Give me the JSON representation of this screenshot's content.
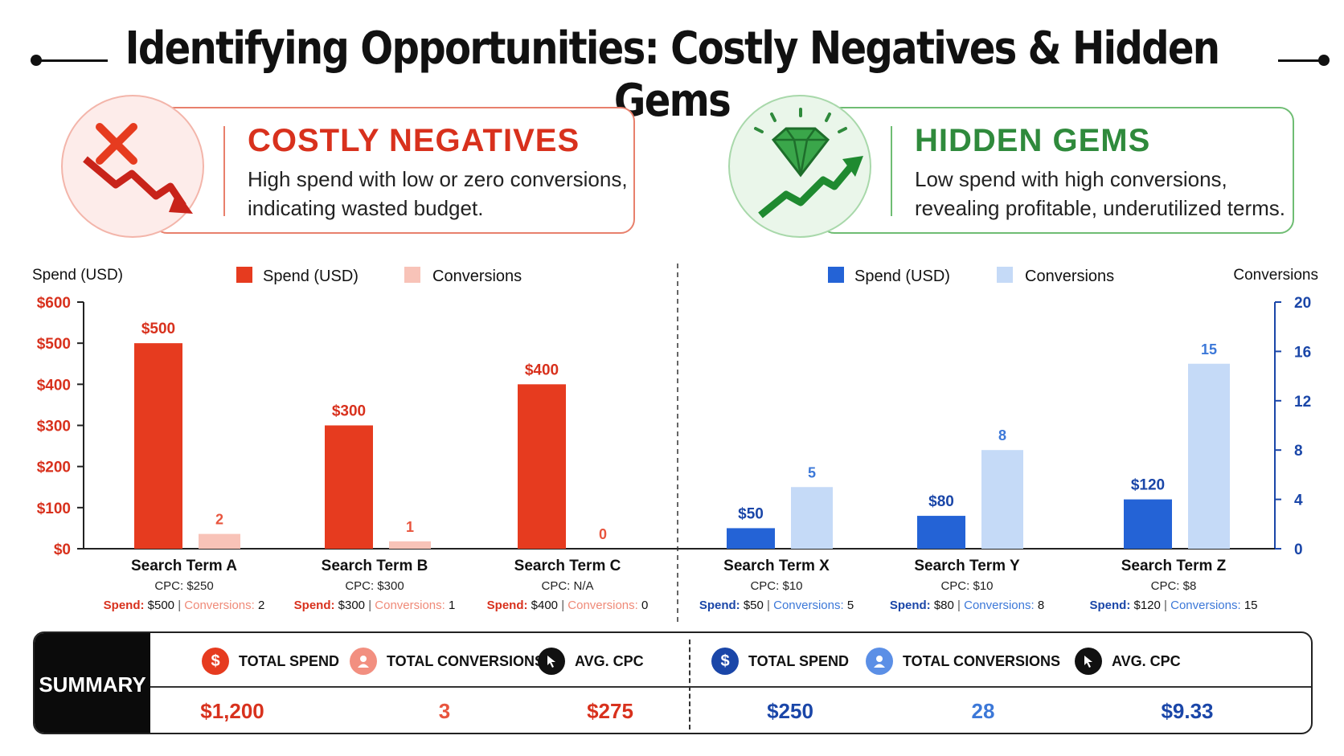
{
  "title": "Identifying Opportunities: Costly Negatives & Hidden Gems",
  "colors": {
    "neg_spend": "#e63b1f",
    "neg_conv": "#f8c3b8",
    "neg_text": "#d8311d",
    "gem_spend": "#2463d6",
    "gem_conv": "#c5daf7",
    "gem_text": "#1a46a8",
    "gem_green": "#2f8a3c"
  },
  "cards": {
    "negatives": {
      "title": "COSTLY NEGATIVES",
      "line1": "High spend with low or zero conversions,",
      "line2": "indicating wasted budget.",
      "icon": "cross-downtrend-icon"
    },
    "gems": {
      "title": "HIDDEN GEMS",
      "line1": "Low spend with high conversions,",
      "line2": "revealing profitable, underutilized terms.",
      "icon": "gem-uptrend-icon"
    }
  },
  "chart_data": {
    "type": "bar",
    "y_left": {
      "label": "Spend (USD)",
      "ticks": [
        "$0",
        "$100",
        "$200",
        "$300",
        "$400",
        "$500",
        "$600"
      ],
      "range": [
        0,
        600
      ]
    },
    "y_right": {
      "label": "Conversions",
      "ticks": [
        "0",
        "4",
        "8",
        "12",
        "16",
        "20"
      ],
      "range": [
        0,
        20
      ]
    },
    "legends": {
      "negatives": [
        {
          "name": "Spend (USD)"
        },
        {
          "name": "Conversions"
        }
      ],
      "gems": [
        {
          "name": "Spend (USD)"
        },
        {
          "name": "Conversions"
        }
      ]
    },
    "groups": [
      {
        "name": "negatives",
        "categories": [
          {
            "term": "Search Term A",
            "cpc": "CPC: $250",
            "spend": 500,
            "spend_label": "$500",
            "conversions": 2,
            "conv_label": "2",
            "foot_spend": "$500",
            "foot_conv": "2"
          },
          {
            "term": "Search Term B",
            "cpc": "CPC: $300",
            "spend": 300,
            "spend_label": "$300",
            "conversions": 1,
            "conv_label": "1",
            "foot_spend": "$300",
            "foot_conv": "1"
          },
          {
            "term": "Search Term C",
            "cpc": "CPC: N/A",
            "spend": 400,
            "spend_label": "$400",
            "conversions": 0,
            "conv_label": "0",
            "foot_spend": "$400",
            "foot_conv": "0"
          }
        ]
      },
      {
        "name": "gems",
        "categories": [
          {
            "term": "Search Term X",
            "cpc": "CPC: $10",
            "spend": 50,
            "spend_label": "$50",
            "conversions": 5,
            "conv_label": "5",
            "foot_spend": "$50",
            "foot_conv": "5"
          },
          {
            "term": "Search Term Y",
            "cpc": "CPC: $10",
            "spend": 80,
            "spend_label": "$80",
            "conversions": 8,
            "conv_label": "8",
            "foot_spend": "$80",
            "foot_conv": "8"
          },
          {
            "term": "Search Term Z",
            "cpc": "CPC: $8",
            "spend": 120,
            "spend_label": "$120",
            "conversions": 15,
            "conv_label": "15",
            "foot_spend": "$120",
            "foot_conv": "15"
          }
        ]
      }
    ],
    "foot_labels": {
      "spend": "Spend:",
      "conversions": "Conversions:",
      "sep": "|"
    }
  },
  "summary": {
    "label": "SUMMARY",
    "negatives": {
      "total_spend_label": "TOTAL SPEND",
      "total_spend": "$1,200",
      "total_conv_label": "TOTAL CONVERSIONS",
      "total_conv": "3",
      "avg_cpc_label": "AVG. CPC",
      "avg_cpc": "$275"
    },
    "gems": {
      "total_spend_label": "TOTAL SPEND",
      "total_spend": "$250",
      "total_conv_label": "TOTAL CONVERSIONS",
      "total_conv": "28",
      "avg_cpc_label": "AVG. CPC",
      "avg_cpc": "$9.33"
    }
  }
}
